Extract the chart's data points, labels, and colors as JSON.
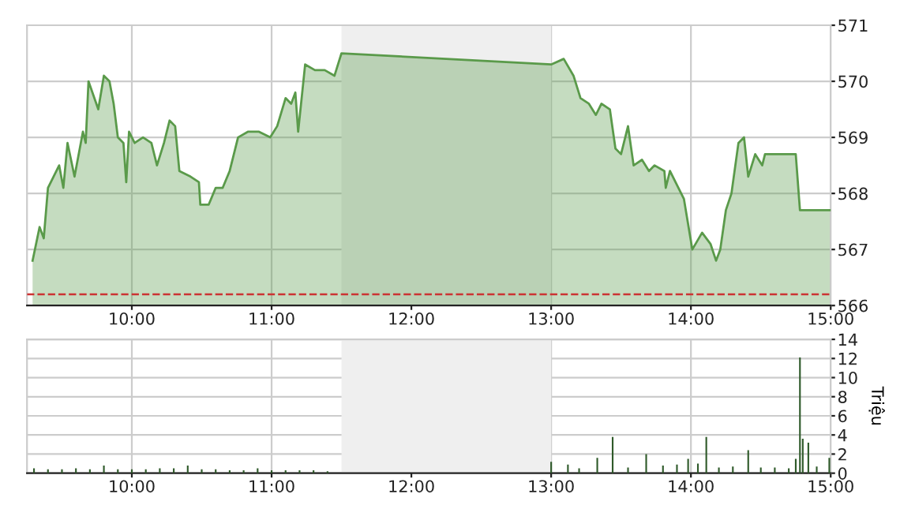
{
  "chart_data": [
    {
      "type": "area",
      "xlim": [
        9.25,
        15
      ],
      "xticks": [
        {
          "value": 10,
          "label": "10:00"
        },
        {
          "value": 11,
          "label": "11:00"
        },
        {
          "value": 12,
          "label": "12:00"
        },
        {
          "value": 13,
          "label": "13:00"
        },
        {
          "value": 14,
          "label": "14:00"
        },
        {
          "value": 15,
          "label": "15:00"
        }
      ],
      "ylim": [
        566,
        571
      ],
      "yticks": [
        566,
        567,
        568,
        569,
        570,
        571
      ],
      "grid": true,
      "series": [
        {
          "color": "#5a9a4a",
          "x": [
            9.29,
            9.34,
            9.37,
            9.4,
            9.44,
            9.48,
            9.51,
            9.54,
            9.59,
            9.65,
            9.67,
            9.69,
            9.76,
            9.8,
            9.84,
            9.87,
            9.9,
            9.94,
            9.96,
            9.98,
            10.02,
            10.08,
            10.14,
            10.18,
            10.23,
            10.27,
            10.31,
            10.34,
            10.42,
            10.48,
            10.49,
            10.55,
            10.6,
            10.65,
            10.7,
            10.76,
            10.83,
            10.91,
            10.99,
            11.04,
            11.1,
            11.14,
            11.17,
            11.19,
            11.24,
            11.31,
            11.38,
            11.45,
            11.5,
            13.0,
            13.09,
            13.16,
            13.21,
            13.27,
            13.32,
            13.36,
            13.42,
            13.46,
            13.5,
            13.55,
            13.59,
            13.65,
            13.7,
            13.74,
            13.81,
            13.82,
            13.85,
            13.89,
            13.95,
            14.01,
            14.08,
            14.14,
            14.18,
            14.21,
            14.25,
            14.29,
            14.34,
            14.38,
            14.41,
            14.46,
            14.51,
            14.53,
            14.75,
            14.78,
            15.0
          ],
          "values": [
            566.8,
            567.4,
            567.2,
            568.1,
            568.3,
            568.5,
            568.1,
            568.9,
            568.3,
            569.1,
            568.9,
            570.0,
            569.5,
            570.1,
            570.0,
            569.6,
            569.0,
            568.9,
            568.2,
            569.1,
            568.9,
            569.0,
            568.9,
            568.5,
            568.9,
            569.3,
            569.2,
            568.4,
            568.3,
            568.2,
            567.8,
            567.8,
            568.1,
            568.1,
            568.4,
            569.0,
            569.1,
            569.1,
            569.0,
            569.2,
            569.7,
            569.6,
            569.8,
            569.1,
            570.3,
            570.2,
            570.2,
            570.1,
            570.5,
            570.3,
            570.4,
            570.1,
            569.7,
            569.6,
            569.4,
            569.6,
            569.5,
            568.8,
            568.7,
            569.2,
            568.5,
            568.6,
            568.4,
            568.5,
            568.4,
            568.1,
            568.4,
            568.2,
            567.9,
            567.0,
            567.3,
            567.1,
            566.8,
            567.0,
            567.7,
            568.0,
            568.9,
            569.0,
            568.3,
            568.7,
            568.5,
            568.7,
            568.7,
            567.7,
            567.7
          ]
        }
      ],
      "ref_lines": [
        {
          "axis": "y",
          "value": 566.2,
          "color": "#cc3333",
          "line_style": "dashed"
        }
      ],
      "bands": [
        {
          "axis": "x",
          "from": 11.5,
          "to": 13.0,
          "color": "#efefef"
        }
      ]
    },
    {
      "type": "bar",
      "ylabel": "Triệu",
      "xlim": [
        9.25,
        15
      ],
      "xticks": [
        {
          "value": 10,
          "label": "10:00"
        },
        {
          "value": 11,
          "label": "11:00"
        },
        {
          "value": 12,
          "label": "12:00"
        },
        {
          "value": 13,
          "label": "13:00"
        },
        {
          "value": 14,
          "label": "14:00"
        },
        {
          "value": 15,
          "label": "15:00"
        }
      ],
      "ylim": [
        0,
        14
      ],
      "yticks": [
        0,
        2,
        4,
        6,
        8,
        10,
        12,
        14
      ],
      "grid": true,
      "series": [
        {
          "color": "#2f5a2a",
          "x": [
            9.3,
            9.4,
            9.5,
            9.6,
            9.7,
            9.8,
            9.9,
            10.0,
            10.1,
            10.2,
            10.3,
            10.4,
            10.5,
            10.6,
            10.7,
            10.8,
            10.9,
            11.0,
            11.1,
            11.2,
            11.3,
            11.4,
            13.0,
            13.12,
            13.2,
            13.33,
            13.44,
            13.55,
            13.68,
            13.8,
            13.9,
            13.98,
            14.05,
            14.11,
            14.2,
            14.3,
            14.41,
            14.5,
            14.6,
            14.7,
            14.75,
            14.78,
            14.8,
            14.84,
            14.9,
            14.99
          ],
          "values": [
            0.5,
            0.4,
            0.4,
            0.5,
            0.4,
            0.8,
            0.4,
            0.4,
            0.4,
            0.5,
            0.5,
            0.8,
            0.4,
            0.4,
            0.3,
            0.3,
            0.5,
            0.3,
            0.3,
            0.3,
            0.3,
            0.2,
            1.2,
            0.9,
            0.5,
            1.6,
            3.8,
            0.6,
            2.0,
            0.8,
            0.9,
            1.5,
            1.0,
            3.8,
            0.6,
            0.7,
            2.4,
            0.6,
            0.6,
            0.5,
            1.5,
            12.1,
            3.6,
            3.2,
            0.7,
            1.6
          ]
        }
      ],
      "bands": [
        {
          "axis": "x",
          "from": 11.5,
          "to": 13.0,
          "color": "#efefef"
        }
      ]
    }
  ]
}
